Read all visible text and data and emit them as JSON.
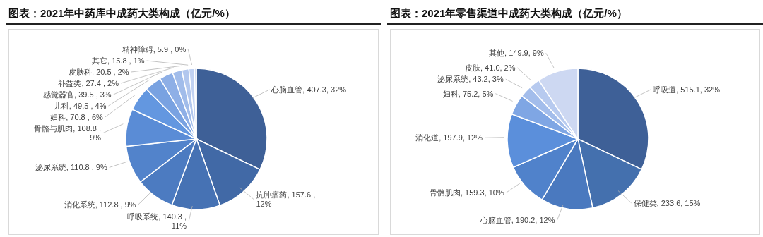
{
  "chart_data": [
    {
      "type": "pie",
      "title": "图表：2021年中药库中成药大类构成（亿元/%）",
      "categories": [
        "心脑血管",
        "抗肿瘤药",
        "呼吸系统",
        "消化系统",
        "泌尿系统",
        "骨骼与肌肉",
        "妇科",
        "儿科",
        "感觉器官",
        "补益类",
        "皮肤科",
        "其它",
        "精神障碍"
      ],
      "values": [
        407.3,
        157.6,
        140.3,
        112.8,
        110.8,
        108.8,
        70.8,
        49.5,
        39.5,
        27.4,
        20.5,
        15.8,
        5.9
      ],
      "value_labels": [
        "407.3, 32%",
        "157.6 , 12%",
        "140.3 , 11%",
        "112.8 , 9%",
        "110.8 , 9%",
        "108.8 , 9%",
        "70.8 , 6%",
        "49.5 , 4%",
        "39.5 , 3%",
        "27.4 , 2%",
        "20.5 , 2%",
        "15.8 , 1%",
        "5.9 , 0%"
      ],
      "colors": [
        "#3e6097",
        "#4169a6",
        "#4672b4",
        "#4c7bc1",
        "#5283cb",
        "#5a8cd6",
        "#6397e0",
        "#79a2e1",
        "#8eafe6",
        "#a1bcea",
        "#b2c7ee",
        "#c2d2f2",
        "#d0dcf5"
      ]
    },
    {
      "type": "pie",
      "title": "图表：2021年零售渠道中成药大类构成（亿元/%）",
      "categories": [
        "呼吸道",
        "保健类",
        "心脑血管",
        "骨骼肌肉",
        "消化道",
        "妇科",
        "泌尿系统",
        "皮肤",
        "其他"
      ],
      "values": [
        515.1,
        233.6,
        190.2,
        159.3,
        197.9,
        75.2,
        43.2,
        41.0,
        149.9
      ],
      "value_labels": [
        "515.1, 32%",
        "233.6, 15%",
        "190.2, 12%",
        "159.3, 10%",
        "197.9, 12%",
        "75.2, 5%",
        "43.2, 3%",
        "41.0, 2%",
        "149.9, 9%"
      ],
      "colors": [
        "#3e6097",
        "#4470ae",
        "#4a79bf",
        "#5082cb",
        "#5b8fdb",
        "#7fa6e4",
        "#a3bdeb",
        "#b7caef",
        "#cdd8f2"
      ]
    }
  ]
}
